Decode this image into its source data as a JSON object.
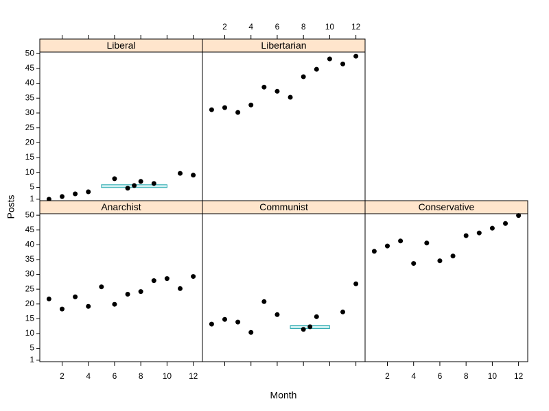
{
  "chart_data": {
    "type": "scatter",
    "xlabel": "Month",
    "ylabel": "Posts",
    "xlim": [
      0.3,
      12.7
    ],
    "xticks": [
      2,
      4,
      6,
      8,
      10,
      12
    ],
    "ylim": [
      0.5,
      50.5
    ],
    "yticks": [
      1,
      5,
      10,
      15,
      20,
      25,
      30,
      35,
      40,
      45,
      50
    ],
    "strip_color": "#ffe5cc",
    "color": "#000000",
    "band_color": "#2aa9b0",
    "panels": [
      {
        "title": "Liberal",
        "x": [
          1,
          2,
          3,
          4,
          6,
          7,
          7.5,
          8,
          9,
          11,
          12
        ],
        "values": [
          1,
          1.9,
          2.8,
          3.5,
          7.9,
          4.7,
          5.6,
          7,
          6.3,
          9.7,
          9.1
        ],
        "band": {
          "x": [
            5,
            10
          ],
          "y": 5.4
        }
      },
      {
        "title": "Libertarian",
        "x": [
          1,
          2,
          3,
          4,
          5,
          6,
          7,
          8,
          9,
          10,
          11,
          12
        ],
        "values": [
          31.1,
          31.8,
          30.2,
          32.7,
          38.7,
          37.3,
          35.3,
          42.2,
          44.7,
          48.2,
          46.5,
          49.1
        ]
      },
      {
        "title": "Anarchist",
        "x": [
          1,
          2,
          3,
          4,
          5,
          6,
          7,
          8,
          9,
          10,
          11,
          12
        ],
        "values": [
          21.7,
          18.3,
          22.4,
          19.2,
          25.8,
          19.9,
          23.3,
          24.2,
          27.9,
          28.6,
          25.2,
          29.3
        ]
      },
      {
        "title": "Communist",
        "x": [
          1,
          2,
          3,
          4,
          5,
          6,
          8,
          8.5,
          9,
          11,
          12
        ],
        "values": [
          13.2,
          14.8,
          13.9,
          10.4,
          20.8,
          16.4,
          11.4,
          12.3,
          15.7,
          17.3,
          26.8
        ],
        "band": {
          "x": [
            7,
            10
          ],
          "y": 12.2
        }
      },
      {
        "title": "Conservative",
        "x": [
          1,
          2,
          3,
          4,
          5,
          6,
          7,
          8,
          9,
          10,
          11,
          12
        ],
        "values": [
          37.8,
          39.6,
          41.3,
          33.7,
          40.6,
          34.6,
          36.2,
          43.1,
          44,
          45.6,
          47.2,
          49.9
        ]
      }
    ]
  }
}
